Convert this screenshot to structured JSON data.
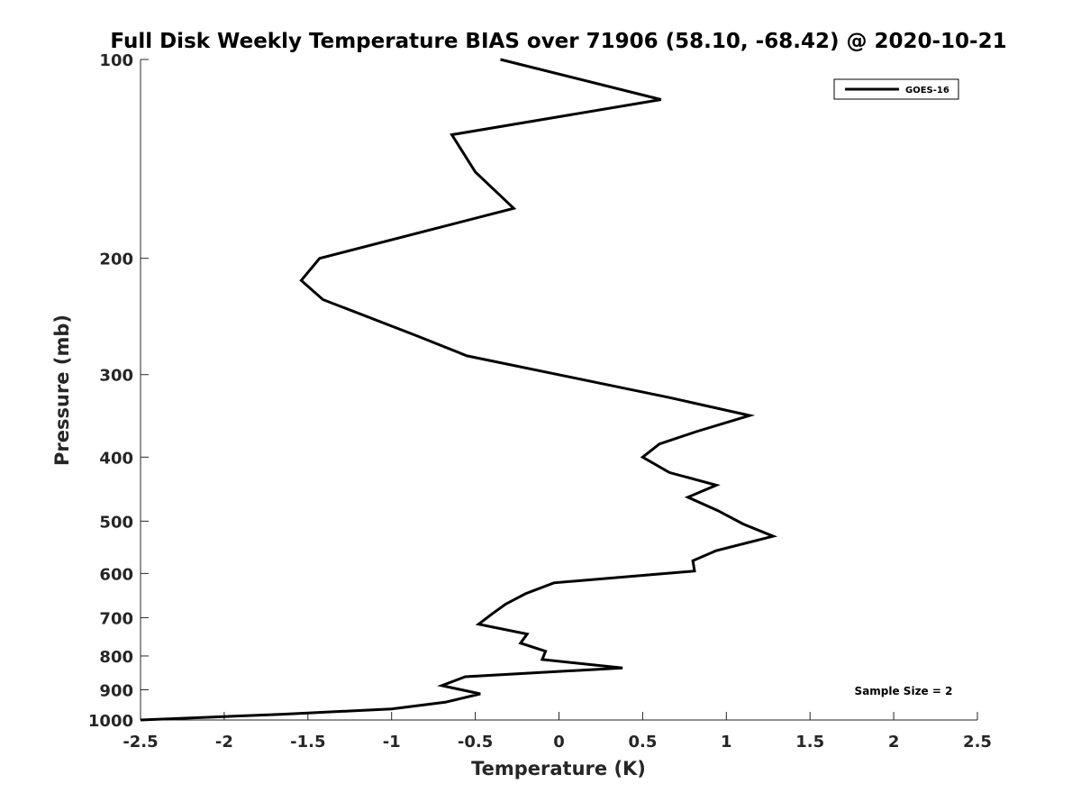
{
  "chart_data": {
    "type": "line",
    "title": "Full Disk Weekly Temperature BIAS over 71906 (58.10, -68.42) @ 2020-10-21",
    "xlabel": "Temperature (K)",
    "ylabel": "Pressure (mb)",
    "xlim": [
      -2.5,
      2.5
    ],
    "ylim": [
      100,
      1000
    ],
    "y_scale": "log",
    "y_reversed": true,
    "grid": false,
    "legend_position": "top-right",
    "x_ticks": [
      "-2.5",
      "-2",
      "-1.5",
      "-1",
      "-0.5",
      "0",
      "0.5",
      "1",
      "1.5",
      "2",
      "2.5"
    ],
    "y_ticks": [
      "100",
      "200",
      "300",
      "400",
      "500",
      "600",
      "700",
      "800",
      "900",
      "1000"
    ],
    "annotation": "Sample Size = 2",
    "series": [
      {
        "name": "GOES-16",
        "color": "#000000",
        "x": [
          -0.35,
          0.61,
          -0.64,
          -0.5,
          -0.27,
          -1.43,
          -1.54,
          -1.41,
          -0.85,
          -0.55,
          0.05,
          0.66,
          1.14,
          0.82,
          0.6,
          0.5,
          0.66,
          0.94,
          0.77,
          0.95,
          1.1,
          1.28,
          0.94,
          0.8,
          0.81,
          -0.03,
          -0.2,
          -0.32,
          -0.4,
          -0.48,
          -0.19,
          -0.23,
          -0.08,
          -0.1,
          0.38,
          -0.56,
          -0.7,
          -0.47,
          -0.68,
          -1.0,
          -1.65,
          -2.5
        ],
        "y": [
          100,
          115,
          130,
          148,
          168,
          200,
          216,
          231,
          262,
          281,
          302,
          325,
          346,
          366,
          382,
          400,
          422,
          441,
          460,
          482,
          505,
          527,
          554,
          574,
          595,
          620,
          644,
          668,
          691,
          716,
          741,
          765,
          787,
          810,
          834,
          860,
          887,
          913,
          940,
          962,
          980,
          1000
        ]
      }
    ]
  }
}
